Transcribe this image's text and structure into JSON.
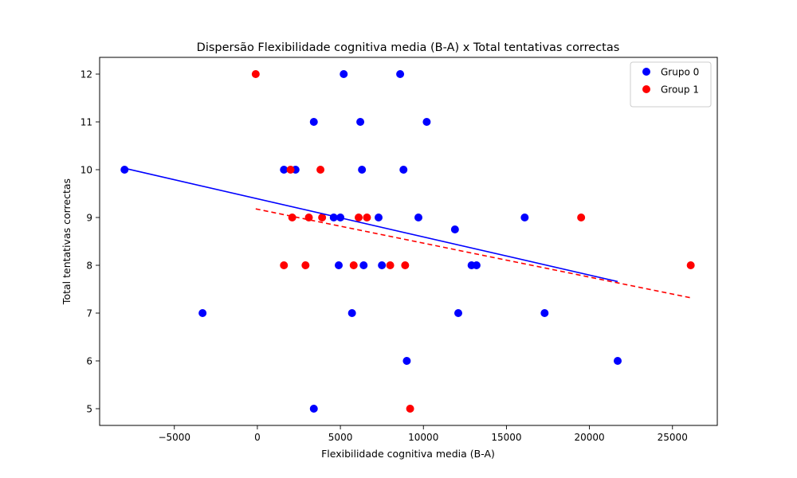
{
  "chart_data": {
    "type": "scatter",
    "title": "Dispersão Flexibilidade cognitiva media (B-A) x Total tentativas correctas",
    "xlabel": "Flexibilidade cognitiva media (B-A)",
    "ylabel": "Total tentativas correctas",
    "xlim": [
      -9500,
      27700
    ],
    "ylim": [
      4.65,
      12.35
    ],
    "xticks": [
      -5000,
      0,
      5000,
      10000,
      15000,
      20000,
      25000
    ],
    "xtick_labels": [
      "−5000",
      "0",
      "5000",
      "10000",
      "15000",
      "20000",
      "25000"
    ],
    "yticks": [
      5,
      6,
      7,
      8,
      9,
      10,
      11,
      12
    ],
    "ytick_labels": [
      "5",
      "6",
      "7",
      "8",
      "9",
      "10",
      "11",
      "12"
    ],
    "grid": false,
    "legend_position": "upper right",
    "series": [
      {
        "name": "Grupo 0",
        "color": "#0000ff",
        "points": [
          [
            -8000,
            10
          ],
          [
            -3300,
            7
          ],
          [
            1600,
            10
          ],
          [
            2300,
            10
          ],
          [
            3400,
            11
          ],
          [
            3400,
            5
          ],
          [
            4600,
            9
          ],
          [
            4900,
            8
          ],
          [
            5000,
            9
          ],
          [
            5200,
            12
          ],
          [
            5700,
            7
          ],
          [
            6200,
            11
          ],
          [
            6300,
            10
          ],
          [
            6400,
            8
          ],
          [
            7300,
            9
          ],
          [
            7500,
            8
          ],
          [
            8600,
            12
          ],
          [
            8800,
            10
          ],
          [
            9000,
            6
          ],
          [
            9700,
            9
          ],
          [
            10200,
            11
          ],
          [
            11900,
            8.75
          ],
          [
            12100,
            7
          ],
          [
            12900,
            8
          ],
          [
            13200,
            8
          ],
          [
            16100,
            9
          ],
          [
            17300,
            7
          ],
          [
            21700,
            6
          ]
        ],
        "fit": {
          "x": [
            -8000,
            21700
          ],
          "y": [
            10.03,
            7.66
          ],
          "style": "solid"
        }
      },
      {
        "name": "Group 1",
        "color": "#ff0000",
        "points": [
          [
            -100,
            12
          ],
          [
            1600,
            8
          ],
          [
            2000,
            10
          ],
          [
            2100,
            9
          ],
          [
            2900,
            8
          ],
          [
            3100,
            9
          ],
          [
            3800,
            10
          ],
          [
            3900,
            9
          ],
          [
            5800,
            8
          ],
          [
            6100,
            9
          ],
          [
            6600,
            9
          ],
          [
            8000,
            8
          ],
          [
            8900,
            8
          ],
          [
            9200,
            5
          ],
          [
            19500,
            9
          ],
          [
            26100,
            8
          ]
        ],
        "fit": {
          "x": [
            -100,
            26100
          ],
          "y": [
            9.18,
            7.32
          ],
          "style": "dashed"
        }
      }
    ]
  }
}
